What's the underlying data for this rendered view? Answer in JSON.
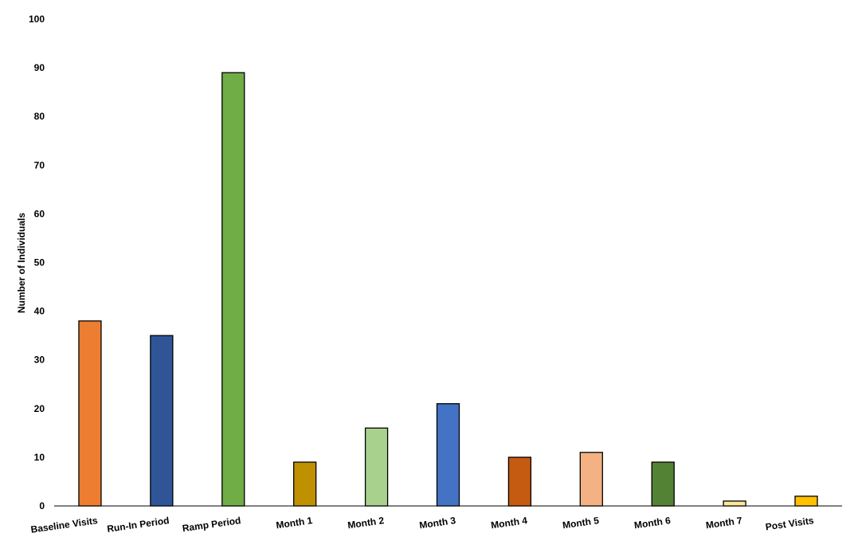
{
  "chart_data": {
    "type": "bar",
    "title": "",
    "xlabel": "",
    "ylabel": "Number of Individuals",
    "ylim": [
      0,
      100
    ],
    "yticks": [
      0,
      10,
      20,
      30,
      40,
      50,
      60,
      70,
      80,
      90,
      100
    ],
    "grid": false,
    "legend": "none",
    "categories": [
      "Baseline Visits",
      "Run-In Period",
      "Ramp Period",
      "Month 1",
      "Month 2",
      "Month 3",
      "Month 4",
      "Month 5",
      "Month 6",
      "Month 7",
      "Post Visits"
    ],
    "values": [
      38,
      35,
      89,
      9,
      16,
      21,
      10,
      11,
      9,
      1,
      2
    ],
    "colors": [
      "#ED7D31",
      "#2F5597",
      "#70AD47",
      "#BF9000",
      "#A9D18E",
      "#4472C4",
      "#C55A11",
      "#F4B183",
      "#548235",
      "#FFE699",
      "#FFC000"
    ]
  }
}
